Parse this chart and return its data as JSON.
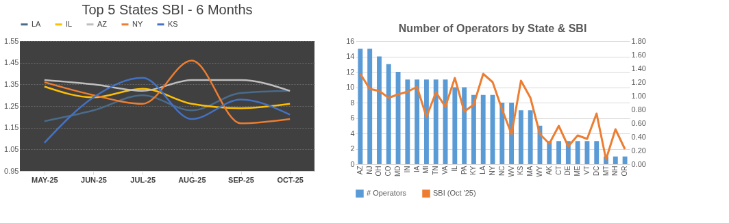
{
  "chart_data": [
    {
      "type": "line",
      "title": "Top 5 States SBI - 6 Months",
      "categories": [
        "MAY-25",
        "JUN-25",
        "JUL-25",
        "AUG-25",
        "SEP-25",
        "OCT-25"
      ],
      "series": [
        {
          "name": "LA",
          "color": "#4a6b8a",
          "values": [
            1.18,
            1.23,
            1.3,
            1.23,
            1.31,
            1.32
          ]
        },
        {
          "name": "IL",
          "color": "#ffc000",
          "values": [
            1.34,
            1.29,
            1.33,
            1.26,
            1.24,
            1.26
          ]
        },
        {
          "name": "AZ",
          "color": "#bfbfbf",
          "values": [
            1.37,
            1.35,
            1.32,
            1.37,
            1.37,
            1.32
          ]
        },
        {
          "name": "NY",
          "color": "#ed7d31",
          "values": [
            1.36,
            1.3,
            1.26,
            1.46,
            1.17,
            1.19
          ]
        },
        {
          "name": "KS",
          "color": "#4472c4",
          "values": [
            1.08,
            1.29,
            1.38,
            1.19,
            1.28,
            1.21
          ]
        }
      ],
      "ylim": [
        0.95,
        1.55
      ],
      "yticks": [
        0.95,
        1.05,
        1.15,
        1.25,
        1.35,
        1.45,
        1.55
      ],
      "legend": "top",
      "grid": "y"
    },
    {
      "type": "bar",
      "title": "Number of Operators by State & SBI",
      "categories": [
        "AZ",
        "NJ",
        "OH",
        "CO",
        "MD",
        "IN",
        "IA",
        "MI",
        "TN",
        "VA",
        "IL",
        "PA",
        "KY",
        "LA",
        "NY",
        "NC",
        "WV",
        "KS",
        "MA",
        "WY",
        "AK",
        "CT",
        "DE",
        "ME",
        "VT",
        "DC",
        "MT",
        "NH",
        "OR"
      ],
      "series": [
        {
          "name": "# Operators",
          "type": "bar",
          "color": "#5b9bd5",
          "values": [
            15,
            15,
            14,
            13,
            12,
            11,
            11,
            11,
            11,
            11,
            10,
            10,
            9,
            9,
            9,
            8,
            8,
            7,
            7,
            5,
            3,
            3,
            3,
            3,
            3,
            3,
            1,
            1,
            1
          ]
        },
        {
          "name": "SBI (Oct '25)",
          "type": "line",
          "axis": "y2",
          "color": "#ed7d31",
          "values": [
            1.32,
            1.1,
            1.07,
            0.97,
            1.02,
            1.06,
            1.13,
            0.69,
            1.05,
            0.84,
            1.26,
            0.77,
            0.87,
            1.32,
            1.2,
            0.8,
            0.44,
            1.22,
            0.97,
            0.44,
            0.3,
            0.56,
            0.26,
            0.42,
            0.37,
            0.74,
            0.07,
            0.51,
            0.22
          ]
        }
      ],
      "ylim": [
        0,
        16
      ],
      "yticks": [
        0,
        2,
        4,
        6,
        8,
        10,
        12,
        14,
        16
      ],
      "y2lim": [
        0,
        1.8
      ],
      "y2ticks": [
        {
          "value": 0,
          "label": "0.00"
        },
        {
          "value": 0.2,
          "label": "0.20"
        },
        {
          "value": 0.4,
          "label": "0.40"
        },
        {
          "value": 0.6,
          "label": "0.60"
        },
        {
          "value": 0.8,
          "label": "0.80"
        },
        {
          "value": 1.0,
          "label": "1.00"
        },
        {
          "value": 1.2,
          "label": "1.20"
        },
        {
          "value": 1.4,
          "label": "1.40"
        },
        {
          "value": 1.6,
          "label": "1.60"
        },
        {
          "value": 1.8,
          "label": "1.80"
        }
      ],
      "legend": "bottom",
      "grid": "y"
    }
  ]
}
